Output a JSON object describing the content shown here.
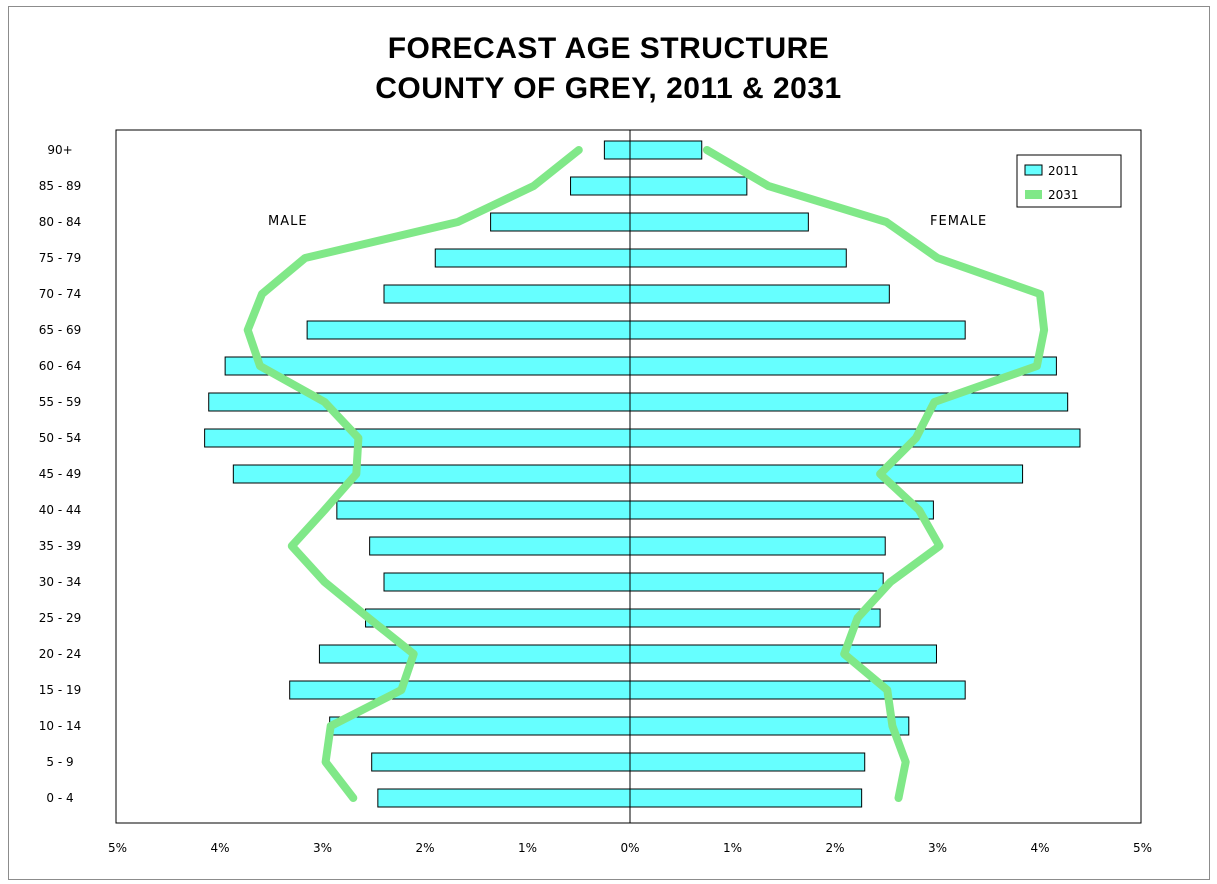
{
  "chart_data": {
    "type": "bar",
    "title": "FORECAST AGE STRUCTURE",
    "subtitle": "COUNTY OF GREY, 2011 & 2031",
    "categories": [
      "0 - 4",
      "5 - 9",
      "10 - 14",
      "15 - 19",
      "20 - 24",
      "25 - 29",
      "30 - 34",
      "35 - 39",
      "40 - 44",
      "45 - 49",
      "50 - 54",
      "55 - 59",
      "60 - 64",
      "65 - 69",
      "70 - 74",
      "75 - 79",
      "80 - 84",
      "85 - 89",
      "90+"
    ],
    "x_ticks": [
      "5%",
      "4%",
      "3%",
      "2%",
      "1%",
      "0%",
      "1%",
      "2%",
      "3%",
      "4%",
      "5%"
    ],
    "xlim": [
      -5,
      5
    ],
    "left_label": "MALE",
    "right_label": "FEMALE",
    "legend_position": "top-right",
    "series": [
      {
        "name": "2011",
        "kind": "bar",
        "color": "#66ffff",
        "male": [
          2.46,
          2.52,
          2.93,
          3.32,
          3.03,
          2.58,
          2.4,
          2.54,
          2.86,
          3.87,
          4.15,
          4.11,
          3.95,
          3.15,
          2.4,
          1.9,
          1.36,
          0.58,
          0.25
        ],
        "female": [
          2.26,
          2.29,
          2.72,
          3.27,
          2.99,
          2.44,
          2.47,
          2.49,
          2.96,
          3.83,
          4.39,
          4.27,
          4.16,
          3.27,
          2.53,
          2.11,
          1.74,
          1.14,
          0.7
        ]
      },
      {
        "name": "2031",
        "kind": "line",
        "color": "#80e888",
        "male": [
          2.7,
          2.97,
          2.92,
          2.23,
          2.11,
          2.55,
          2.98,
          3.3,
          2.98,
          2.67,
          2.65,
          2.98,
          3.61,
          3.73,
          3.59,
          3.17,
          1.68,
          0.94,
          0.5
        ],
        "female": [
          2.62,
          2.69,
          2.56,
          2.51,
          2.09,
          2.22,
          2.54,
          3.02,
          2.82,
          2.44,
          2.79,
          2.97,
          3.97,
          4.04,
          4.0,
          3.0,
          2.5,
          1.35,
          0.75
        ]
      }
    ]
  }
}
